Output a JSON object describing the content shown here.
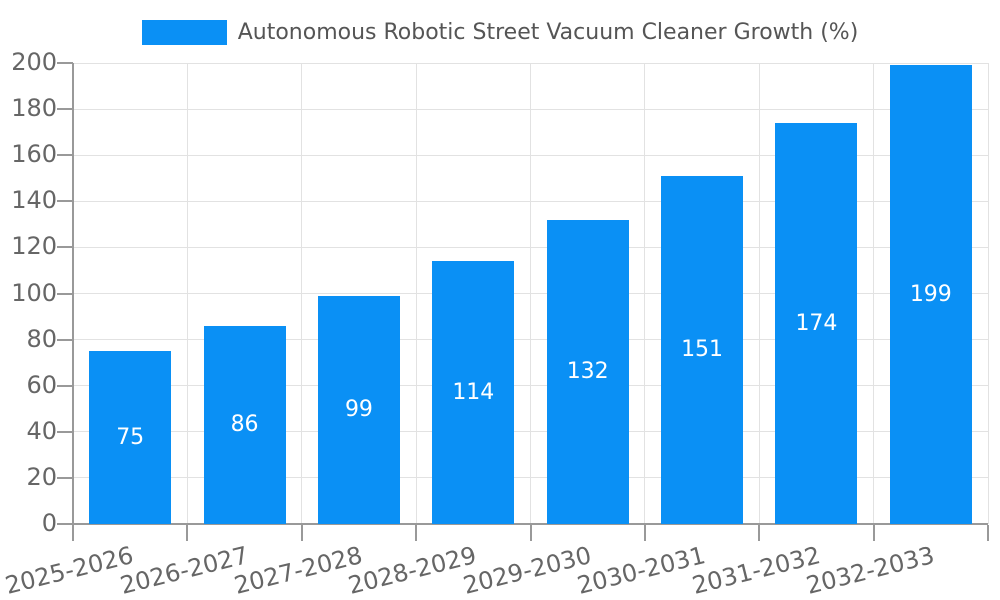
{
  "colors": {
    "bar": "#0a90f5",
    "grid": "#e2e2e2",
    "axis": "#999999",
    "tick": "#999999",
    "axis_label": "#666666",
    "legend_text": "#555555",
    "value_label": "#ffffff",
    "background": "#ffffff"
  },
  "legend": {
    "label": "Autonomous Robotic Street Vacuum Cleaner Growth (%)"
  },
  "chart_data": {
    "type": "bar",
    "title": "",
    "xlabel": "",
    "ylabel": "",
    "legend_label": "Autonomous Robotic Street Vacuum Cleaner Growth (%)",
    "legend_position": "top-center",
    "categories": [
      "2025-2026",
      "2026-2027",
      "2027-2028",
      "2028-2029",
      "2029-2030",
      "2030-2031",
      "2031-2032",
      "2032-2033"
    ],
    "values": [
      75,
      86,
      99,
      114,
      132,
      151,
      174,
      199
    ],
    "value_labels_position": "inside-center",
    "ylim": [
      0,
      200
    ],
    "ytick_step": 20,
    "yticks": [
      0,
      20,
      40,
      60,
      80,
      100,
      120,
      140,
      160,
      180,
      200
    ],
    "grid": true,
    "xtick_rotation_deg": -14
  }
}
